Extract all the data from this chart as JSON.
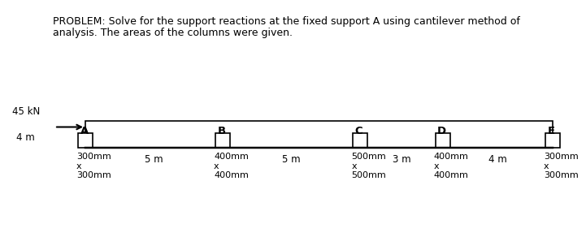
{
  "title_line1": "PROBLEM: Solve for the support reactions at the fixed support A using cantilever method of",
  "title_line2": "analysis. The areas of the columns were given.",
  "load_label": "45 kN",
  "height_label": "4 m",
  "columns": [
    "A",
    "B",
    "C",
    "D",
    "E"
  ],
  "col_sizes_text": [
    [
      "300mm",
      "x",
      "300mm"
    ],
    [
      "400mm",
      "x",
      "400mm"
    ],
    [
      "500mm",
      "x",
      "500mm"
    ],
    [
      "400mm",
      "x",
      "400mm"
    ],
    [
      "300mm",
      "x",
      "300mm"
    ]
  ],
  "span_labels": [
    "5 m",
    "5 m",
    "3 m",
    "4 m"
  ],
  "bg_color": "#ffffff",
  "line_color": "#000000",
  "text_color": "#000000",
  "fontsize_title": 9.0,
  "fontsize_labels": 8.5,
  "fontsize_col_letters": 9.5,
  "fontsize_col_sizes": 8.0,
  "lw": 1.2
}
